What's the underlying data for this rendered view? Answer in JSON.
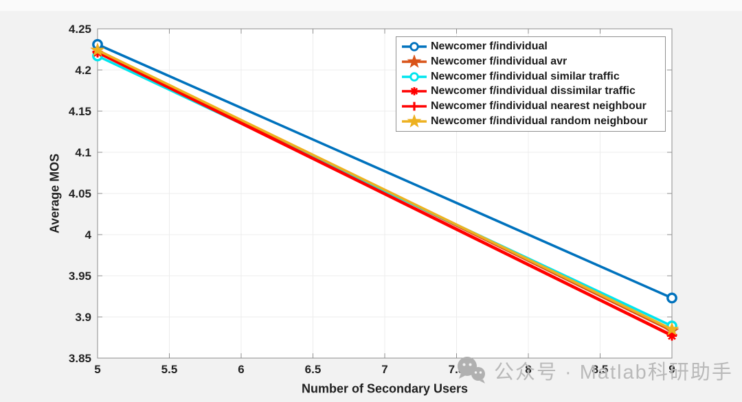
{
  "figure": {
    "background": "#f2f2f2",
    "plot_background": "#ffffff",
    "axis_color": "#8c8c8c",
    "grid_color": "#ececec",
    "tick_label_color": "#222222"
  },
  "chart_data": {
    "type": "line",
    "title": "",
    "xlabel": "Number of Secondary Users",
    "ylabel": "Average MOS",
    "x": [
      5,
      9
    ],
    "xlim": [
      5,
      9
    ],
    "ylim": [
      3.85,
      4.25
    ],
    "xticks": [
      5,
      5.5,
      6,
      6.5,
      7,
      7.5,
      8,
      8.5,
      9
    ],
    "xtick_labels": [
      "5",
      "5.5",
      "6",
      "6.5",
      "7",
      "7.5",
      "8",
      "8.5",
      "9"
    ],
    "yticks": [
      3.85,
      3.9,
      3.95,
      4,
      4.05,
      4.1,
      4.15,
      4.2,
      4.25
    ],
    "ytick_labels": [
      "3.85",
      "3.9",
      "3.95",
      "4",
      "4.05",
      "4.1",
      "4.15",
      "4.2",
      "4.25"
    ],
    "grid": true,
    "legend_position": "top-right",
    "series": [
      {
        "name": "Newcomer f/individual",
        "color": "#0072BD",
        "marker": "circle",
        "values": [
          4.231,
          3.923
        ]
      },
      {
        "name": "Newcomer f/individual avr",
        "color": "#D95319",
        "marker": "pentagram",
        "values": [
          4.224,
          3.883
        ]
      },
      {
        "name": "Newcomer f/individual similar traffic",
        "color": "#00E5EE",
        "marker": "circle",
        "values": [
          4.217,
          3.889
        ]
      },
      {
        "name": "Newcomer f/individual dissimilar traffic",
        "color": "#FF0000",
        "marker": "asterisk",
        "values": [
          4.221,
          3.877
        ]
      },
      {
        "name": "Newcomer f/individual nearest neighbour",
        "color": "#FF0000",
        "marker": "plus",
        "values": [
          4.222,
          3.878
        ]
      },
      {
        "name": "Newcomer f/individual random neighbour",
        "color": "#EDB120",
        "marker": "pentagram",
        "values": [
          4.224,
          3.885
        ]
      }
    ]
  },
  "watermark": {
    "text": "公众号 · Matlab科研助手",
    "icon": "wechat-icon",
    "color": "#b9b9b9"
  }
}
